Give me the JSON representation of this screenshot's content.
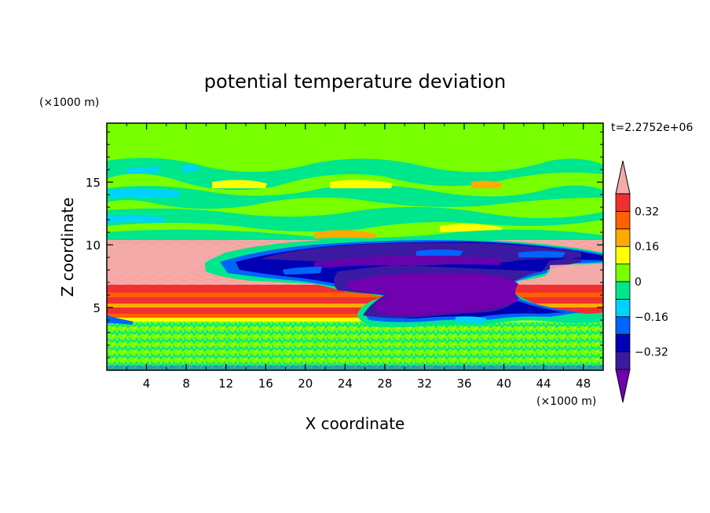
{
  "chart_data": {
    "type": "heatmap",
    "title": "potential temperature deviation",
    "xlabel": "X coordinate",
    "ylabel": "Z coordinate",
    "x_unit": "(×1000 m)",
    "y_unit": "(×1000 m)",
    "time_label": "t=2.2752e+06",
    "xlim": [
      0,
      50
    ],
    "ylim": [
      0,
      19.7
    ],
    "x_ticks": [
      4,
      8,
      12,
      16,
      20,
      24,
      28,
      32,
      36,
      40,
      44,
      48
    ],
    "y_ticks": [
      5,
      10,
      15
    ],
    "colorbar": {
      "levels": [
        -0.4,
        -0.32,
        -0.24,
        -0.16,
        -0.08,
        0,
        0.08,
        0.16,
        0.24,
        0.32,
        0.4
      ],
      "tick_labels": [
        "0.32",
        "0.16",
        "0",
        "−0.16",
        "−0.32"
      ],
      "tick_values": [
        0.32,
        0.16,
        0,
        -0.16,
        -0.32
      ],
      "colors": [
        "#7000b0",
        "#3a1aa0",
        "#0000b4",
        "#0064ff",
        "#00d2ff",
        "#00e68c",
        "#78ff00",
        "#ffff00",
        "#ffaa00",
        "#ff6000",
        "#f03030",
        "#f5aaaa"
      ],
      "extend": "both"
    }
  }
}
